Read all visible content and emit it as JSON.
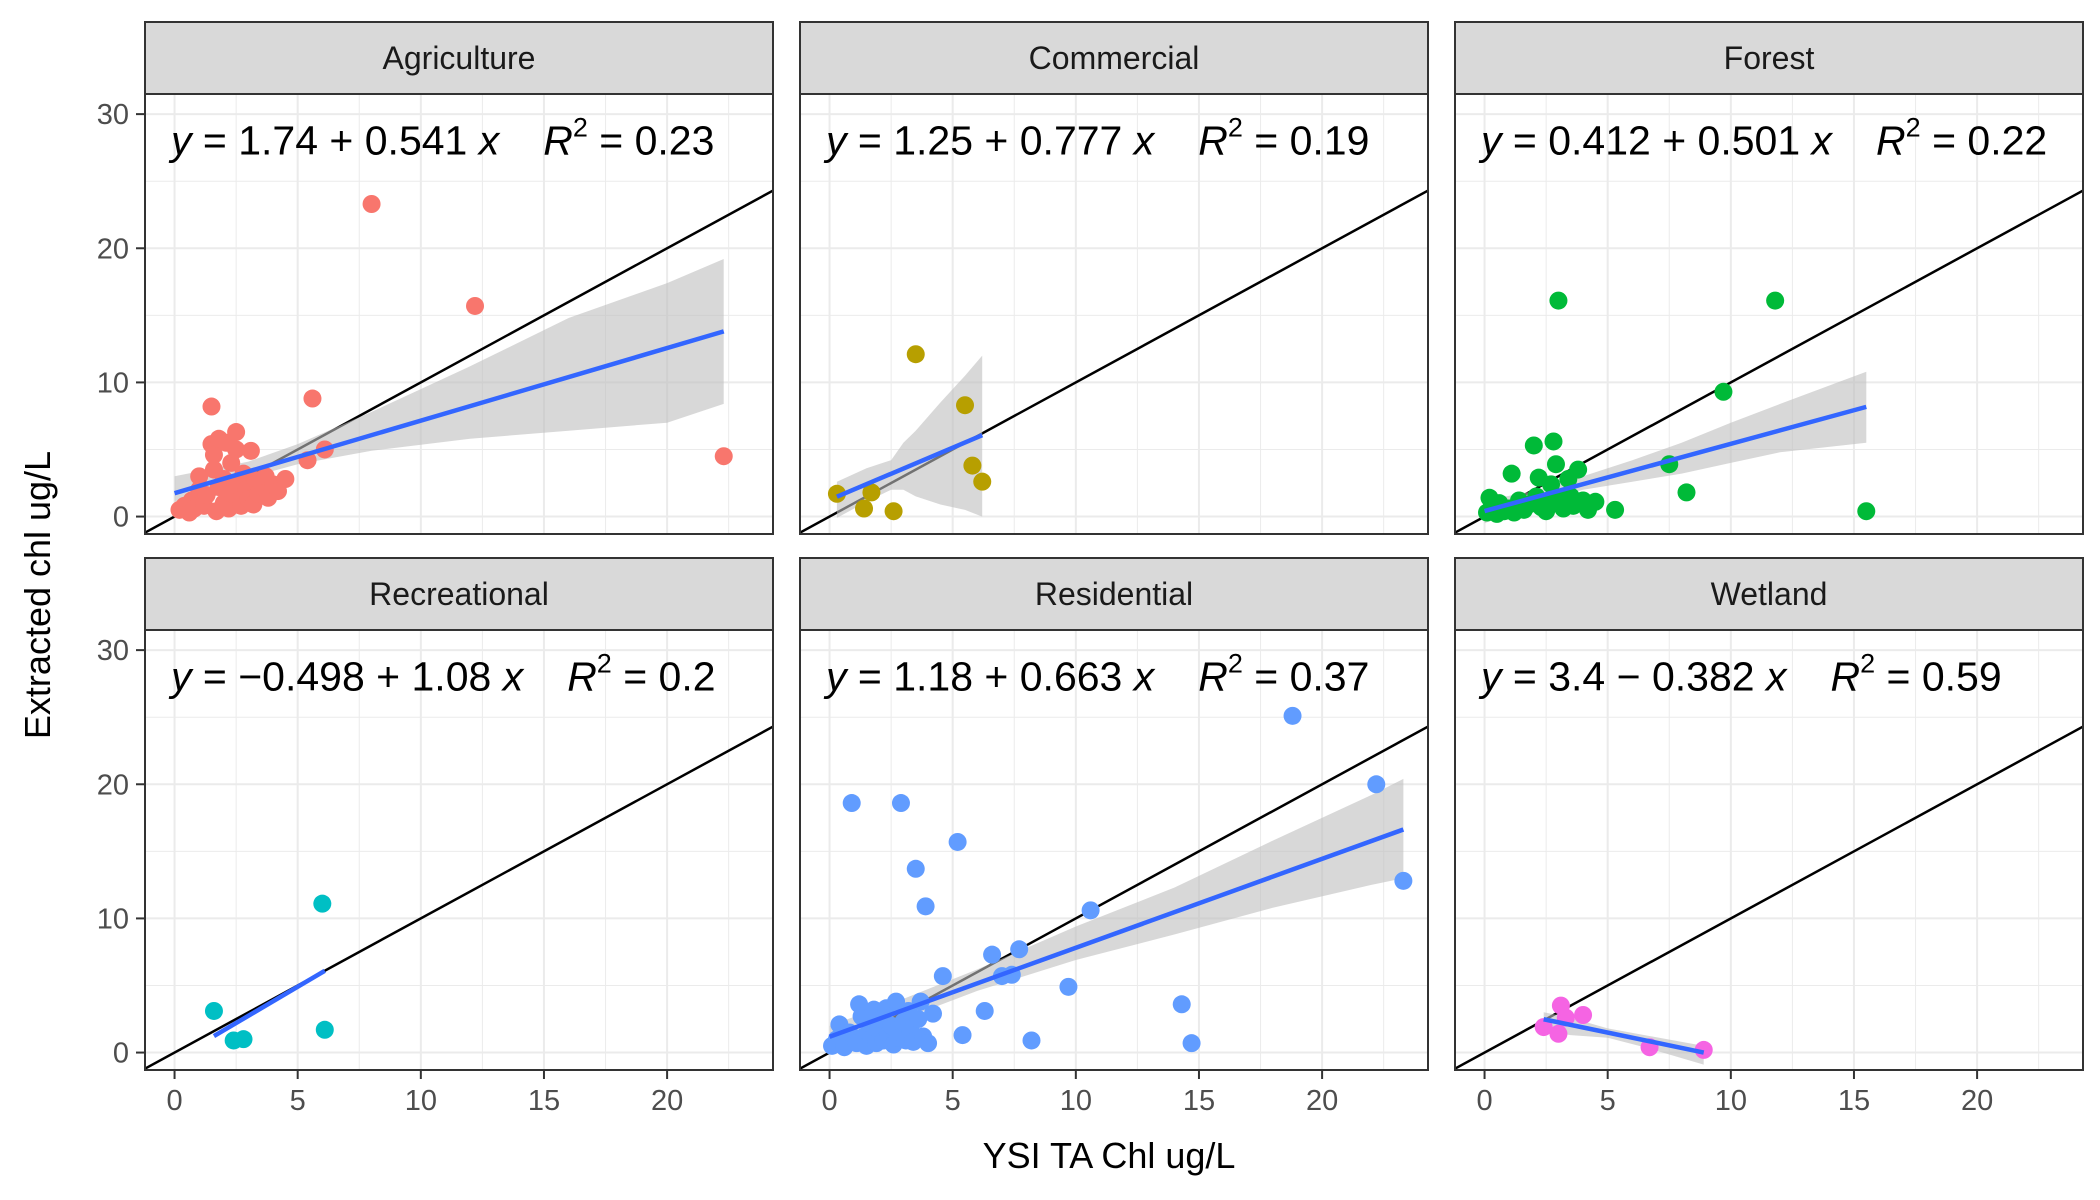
{
  "chart_data": {
    "type": "scatter",
    "xlabel": "YSI TA Chl ug/L",
    "ylabel": "Extracted chl ug/L",
    "xlim": [
      -1.2,
      24.3
    ],
    "ylim": [
      -1.3,
      31.5
    ],
    "x_ticks": [
      0,
      5,
      10,
      15,
      20
    ],
    "y_ticks": [
      0,
      10,
      20,
      30
    ],
    "grid": true,
    "reference_line": {
      "label": "1:1 line",
      "color": "#000000"
    },
    "fit_line_color": "#3366FF",
    "ribbon_color": "#BEBEBE",
    "panels": [
      {
        "name": "Agriculture",
        "color": "#F8766D",
        "equation": {
          "lhs": "y",
          "rhs": " = 1.74 + 0.541 ",
          "x": "x",
          "r2_label": "R",
          "r2_value": " = 0.23"
        },
        "fit": {
          "intercept": 1.74,
          "slope": 0.541,
          "x_range": [
            0,
            22.3
          ]
        },
        "ribbon": [
          [
            0,
            1.1,
            3.0
          ],
          [
            3,
            2.9,
            4.1
          ],
          [
            5,
            3.9,
            5.4
          ],
          [
            8,
            4.9,
            7.8
          ],
          [
            12,
            5.8,
            11.2
          ],
          [
            16,
            6.4,
            14.8
          ],
          [
            20,
            7.0,
            17.4
          ],
          [
            22.3,
            8.4,
            19.2
          ]
        ],
        "points": [
          [
            0.2,
            0.5
          ],
          [
            0.4,
            0.8
          ],
          [
            0.6,
            0.3
          ],
          [
            0.7,
            1.2
          ],
          [
            0.8,
            0.6
          ],
          [
            1.0,
            2.0
          ],
          [
            1.0,
            3.0
          ],
          [
            1.2,
            0.8
          ],
          [
            1.3,
            1.6
          ],
          [
            1.5,
            5.4
          ],
          [
            1.6,
            4.6
          ],
          [
            1.5,
            8.2
          ],
          [
            1.6,
            3.5
          ],
          [
            1.7,
            0.4
          ],
          [
            1.8,
            2.2
          ],
          [
            1.8,
            5.8
          ],
          [
            2.0,
            1.0
          ],
          [
            2.0,
            2.8
          ],
          [
            2.1,
            5.5
          ],
          [
            2.2,
            0.6
          ],
          [
            2.2,
            1.8
          ],
          [
            2.3,
            4.0
          ],
          [
            2.4,
            2.4
          ],
          [
            2.5,
            6.3
          ],
          [
            2.5,
            5.0
          ],
          [
            2.6,
            1.2
          ],
          [
            2.7,
            0.8
          ],
          [
            2.8,
            3.2
          ],
          [
            2.9,
            2.0
          ],
          [
            3.0,
            1.3
          ],
          [
            3.1,
            4.9
          ],
          [
            3.2,
            0.9
          ],
          [
            3.3,
            2.7
          ],
          [
            3.4,
            1.7
          ],
          [
            3.6,
            2.2
          ],
          [
            3.7,
            3.0
          ],
          [
            3.8,
            1.4
          ],
          [
            4.0,
            2.4
          ],
          [
            4.2,
            1.9
          ],
          [
            4.5,
            2.8
          ],
          [
            5.4,
            4.2
          ],
          [
            5.6,
            8.8
          ],
          [
            6.1,
            5.0
          ],
          [
            8.0,
            23.3
          ],
          [
            12.2,
            15.7
          ],
          [
            22.3,
            4.5
          ]
        ]
      },
      {
        "name": "Commercial",
        "color": "#B79F00",
        "equation": {
          "lhs": "y",
          "rhs": " = 1.25 + 0.777 ",
          "x": "x",
          "r2_label": "R",
          "r2_value": " = 0.19"
        },
        "fit": {
          "intercept": 1.25,
          "slope": 0.777,
          "x_range": [
            0.3,
            6.2
          ]
        },
        "ribbon": [
          [
            0.3,
            -0.1,
            2.6
          ],
          [
            1.5,
            1.1,
            3.6
          ],
          [
            2.5,
            2.0,
            4.2
          ],
          [
            3.0,
            2.0,
            5.5
          ],
          [
            3.5,
            1.5,
            6.4
          ],
          [
            4.5,
            0.9,
            8.5
          ],
          [
            5.5,
            0.5,
            10.5
          ],
          [
            6.2,
            0.0,
            12.0
          ]
        ],
        "points": [
          [
            0.3,
            1.7
          ],
          [
            1.4,
            0.6
          ],
          [
            1.7,
            1.8
          ],
          [
            2.6,
            0.4
          ],
          [
            3.5,
            12.1
          ],
          [
            5.5,
            8.3
          ],
          [
            5.8,
            3.8
          ],
          [
            6.2,
            2.6
          ]
        ]
      },
      {
        "name": "Forest",
        "color": "#00BA38",
        "equation": {
          "lhs": "y",
          "rhs": " = 0.412 + 0.501 ",
          "x": "x",
          "r2_label": "R",
          "r2_value": " = 0.22"
        },
        "fit": {
          "intercept": 0.412,
          "slope": 0.501,
          "x_range": [
            0,
            15.5
          ]
        },
        "ribbon": [
          [
            0,
            -0.5,
            1.2
          ],
          [
            2,
            1.0,
            1.9
          ],
          [
            4,
            2.0,
            3.0
          ],
          [
            6,
            2.6,
            4.2
          ],
          [
            8,
            3.2,
            5.5
          ],
          [
            10,
            4.0,
            7.0
          ],
          [
            12,
            4.8,
            8.4
          ],
          [
            15.5,
            5.5,
            10.8
          ]
        ],
        "points": [
          [
            0.1,
            0.3
          ],
          [
            0.2,
            1.4
          ],
          [
            0.3,
            0.8
          ],
          [
            0.5,
            0.2
          ],
          [
            0.6,
            1.0
          ],
          [
            0.8,
            0.4
          ],
          [
            1.0,
            0.6
          ],
          [
            1.1,
            3.2
          ],
          [
            1.2,
            0.3
          ],
          [
            1.4,
            1.2
          ],
          [
            1.6,
            0.5
          ],
          [
            1.8,
            0.9
          ],
          [
            2.0,
            5.3
          ],
          [
            2.1,
            1.5
          ],
          [
            2.2,
            2.9
          ],
          [
            2.3,
            0.7
          ],
          [
            2.5,
            0.4
          ],
          [
            2.6,
            1.1
          ],
          [
            2.7,
            2.4
          ],
          [
            2.8,
            5.6
          ],
          [
            2.9,
            3.9
          ],
          [
            3.0,
            16.1
          ],
          [
            3.1,
            1.3
          ],
          [
            3.2,
            0.6
          ],
          [
            3.4,
            2.8
          ],
          [
            3.5,
            1.5
          ],
          [
            3.6,
            0.8
          ],
          [
            3.8,
            3.5
          ],
          [
            4.0,
            1.2
          ],
          [
            4.2,
            0.5
          ],
          [
            4.5,
            1.1
          ],
          [
            5.3,
            0.5
          ],
          [
            7.5,
            3.9
          ],
          [
            8.2,
            1.8
          ],
          [
            9.7,
            9.3
          ],
          [
            11.8,
            16.1
          ],
          [
            15.5,
            0.4
          ]
        ]
      },
      {
        "name": "Recreational",
        "color": "#00BFC4",
        "equation": {
          "lhs": "y",
          "rhs": " = −0.498 + 1.08 ",
          "x": "x",
          "r2_label": "R",
          "r2_value": " = 0.2"
        },
        "fit": {
          "intercept": -0.498,
          "slope": 1.08,
          "x_range": [
            1.6,
            6.1
          ]
        },
        "ribbon": [],
        "points": [
          [
            1.6,
            3.1
          ],
          [
            2.4,
            0.9
          ],
          [
            2.8,
            1.0
          ],
          [
            6.0,
            11.1
          ],
          [
            6.1,
            1.7
          ]
        ]
      },
      {
        "name": "Residential",
        "color": "#619CFF",
        "equation": {
          "lhs": "y",
          "rhs": " = 1.18 + 0.663 ",
          "x": "x",
          "r2_label": "R",
          "r2_value": " = 0.37"
        },
        "fit": {
          "intercept": 1.18,
          "slope": 0.663,
          "x_range": [
            0,
            23.3
          ]
        },
        "ribbon": [
          [
            0,
            0.3,
            2.0
          ],
          [
            3,
            2.5,
            4.0
          ],
          [
            6,
            4.6,
            6.2
          ],
          [
            10,
            6.9,
            9.4
          ],
          [
            14,
            8.8,
            12.3
          ],
          [
            18,
            10.8,
            15.8
          ],
          [
            22,
            12.5,
            19.2
          ],
          [
            23.3,
            13.0,
            20.4
          ]
        ],
        "points": [
          [
            0.1,
            0.5
          ],
          [
            0.3,
            1.0
          ],
          [
            0.4,
            2.1
          ],
          [
            0.6,
            0.4
          ],
          [
            0.8,
            1.5
          ],
          [
            0.9,
            18.6
          ],
          [
            1.1,
            0.7
          ],
          [
            1.2,
            3.6
          ],
          [
            1.3,
            2.7
          ],
          [
            1.4,
            1.2
          ],
          [
            1.5,
            0.5
          ],
          [
            1.6,
            2.2
          ],
          [
            1.7,
            1.0
          ],
          [
            1.8,
            3.2
          ],
          [
            1.9,
            0.7
          ],
          [
            2.0,
            1.8
          ],
          [
            2.1,
            2.5
          ],
          [
            2.2,
            0.9
          ],
          [
            2.3,
            3.3
          ],
          [
            2.4,
            1.4
          ],
          [
            2.5,
            2.0
          ],
          [
            2.6,
            0.6
          ],
          [
            2.7,
            3.8
          ],
          [
            2.8,
            1.1
          ],
          [
            2.9,
            18.6
          ],
          [
            3.0,
            2.3
          ],
          [
            3.1,
            0.9
          ],
          [
            3.2,
            3.1
          ],
          [
            3.3,
            1.6
          ],
          [
            3.4,
            0.8
          ],
          [
            3.5,
            13.7
          ],
          [
            3.6,
            2.5
          ],
          [
            3.7,
            3.8
          ],
          [
            3.8,
            1.2
          ],
          [
            3.9,
            10.9
          ],
          [
            4.0,
            0.7
          ],
          [
            4.2,
            2.9
          ],
          [
            4.6,
            5.7
          ],
          [
            5.2,
            15.7
          ],
          [
            5.4,
            1.3
          ],
          [
            6.3,
            3.1
          ],
          [
            6.6,
            7.3
          ],
          [
            7.0,
            5.7
          ],
          [
            7.4,
            5.8
          ],
          [
            7.7,
            7.7
          ],
          [
            8.2,
            0.9
          ],
          [
            9.7,
            4.9
          ],
          [
            10.6,
            10.6
          ],
          [
            14.3,
            3.6
          ],
          [
            14.7,
            0.7
          ],
          [
            18.8,
            25.1
          ],
          [
            22.2,
            20.0
          ],
          [
            23.3,
            12.8
          ]
        ]
      },
      {
        "name": "Wetland",
        "color": "#F564E3",
        "equation": {
          "lhs": "y",
          "rhs": " = 3.4 − 0.382 ",
          "x": "x",
          "r2_label": "R",
          "r2_value": " = 0.59"
        },
        "fit": {
          "intercept": 3.4,
          "slope": -0.382,
          "x_range": [
            2.4,
            8.9
          ]
        },
        "ribbon": [
          [
            2.4,
            1.6,
            3.0
          ],
          [
            3.5,
            1.3,
            2.6
          ],
          [
            5.0,
            1.1,
            1.8
          ],
          [
            6.5,
            0.4,
            1.3
          ],
          [
            8.9,
            -0.9,
            0.5
          ]
        ],
        "points": [
          [
            2.4,
            1.9
          ],
          [
            3.0,
            1.4
          ],
          [
            3.1,
            3.5
          ],
          [
            3.3,
            2.6
          ],
          [
            4.0,
            2.8
          ],
          [
            6.7,
            0.4
          ],
          [
            8.9,
            0.2
          ]
        ]
      }
    ]
  }
}
